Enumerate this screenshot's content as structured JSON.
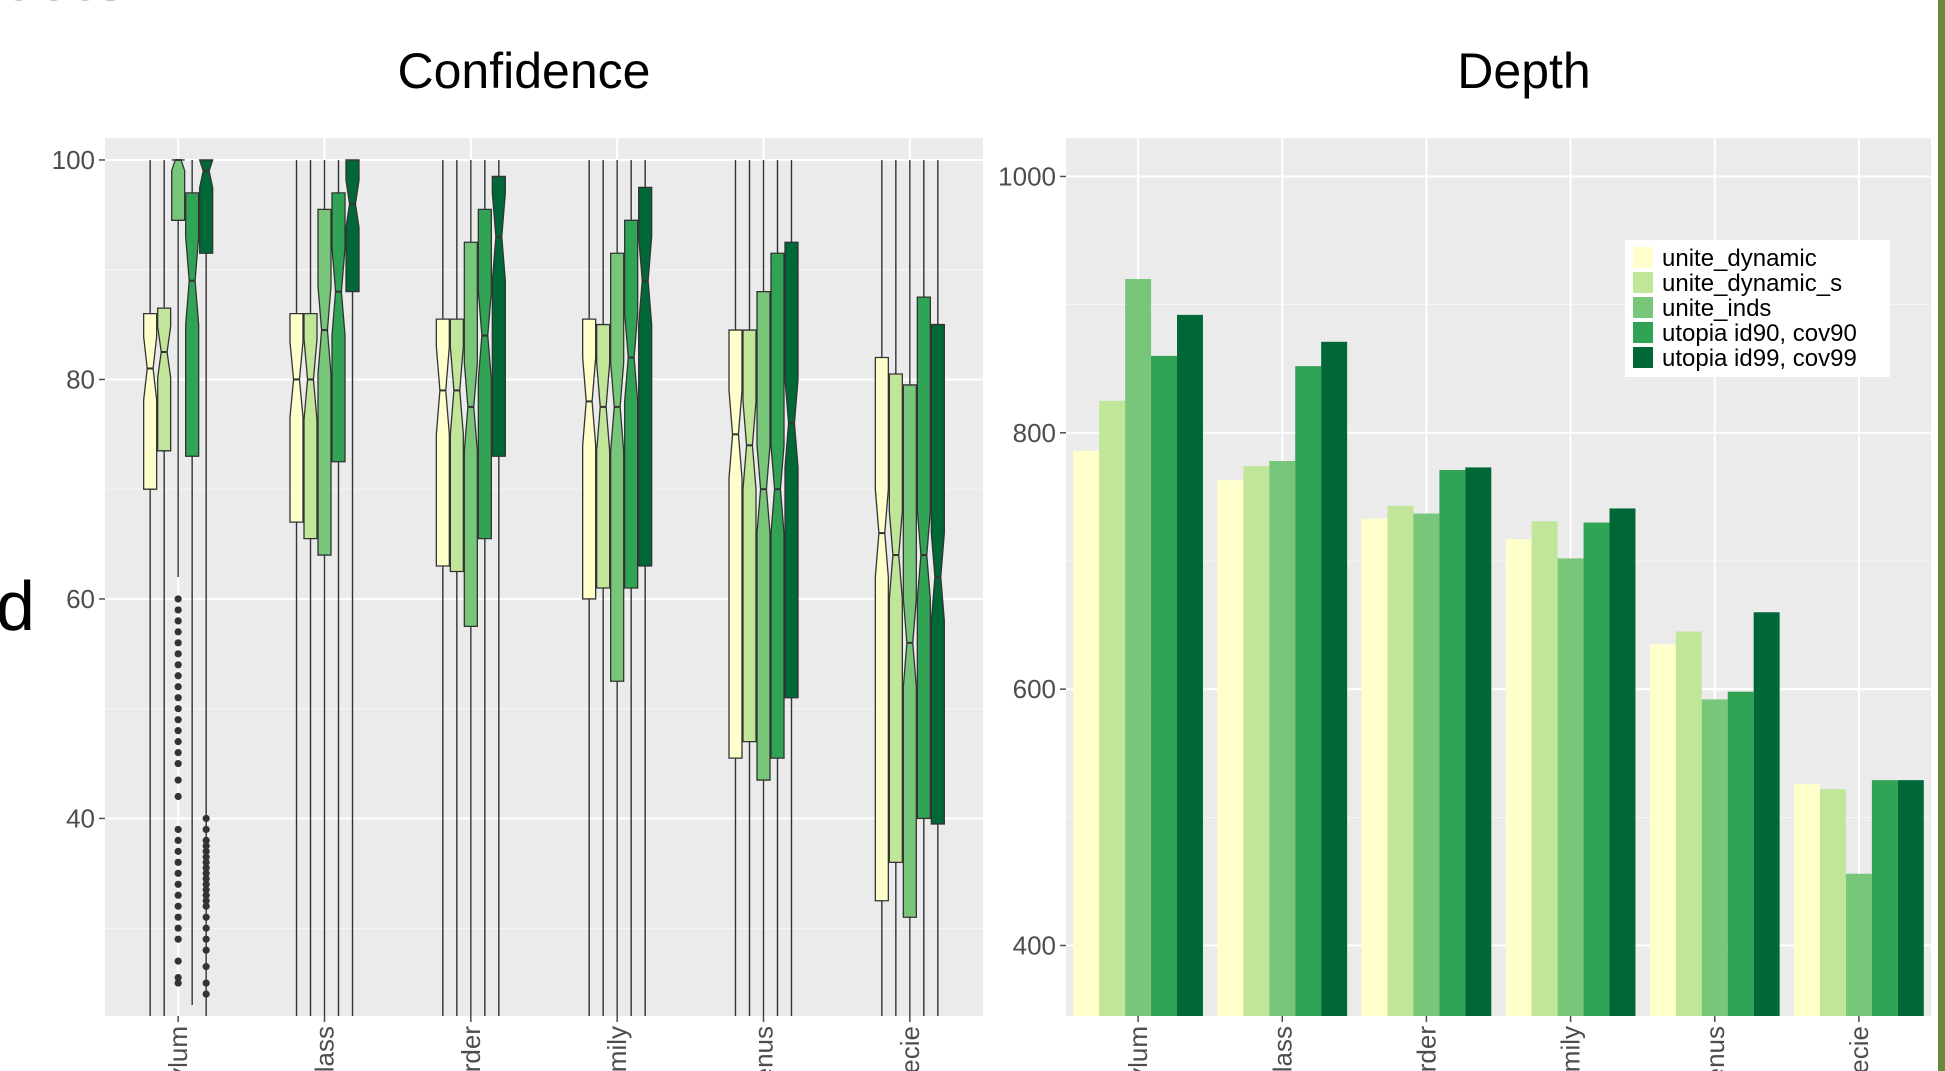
{
  "fragments": {
    "top_left": "cets",
    "left_edge": "d"
  },
  "palette": [
    "#ffffcc",
    "#c2e699",
    "#78c679",
    "#31a354",
    "#006837"
  ],
  "chart_data": [
    {
      "type": "boxplot",
      "title": "Confidence",
      "ylim": [
        22,
        102
      ],
      "yticks": [
        40,
        60,
        80,
        100
      ],
      "grid": true,
      "categories": [
        "ylum",
        "lass",
        "rder",
        "mily",
        "enus",
        "ecie"
      ],
      "series": [
        {
          "boxes": [
            {
              "min": 22,
              "q1": 70,
              "median": 81,
              "q3": 86,
              "max": 100
            },
            {
              "min": 22,
              "q1": 67,
              "median": 80,
              "q3": 86,
              "max": 100
            },
            {
              "min": 22,
              "q1": 63,
              "median": 79,
              "q3": 85.5,
              "max": 100
            },
            {
              "min": 22,
              "q1": 60,
              "median": 78,
              "q3": 85.5,
              "max": 100
            },
            {
              "min": 22,
              "q1": 45.5,
              "median": 75,
              "q3": 84.5,
              "max": 100
            },
            {
              "min": 22,
              "q1": 32.5,
              "median": 66,
              "q3": 82,
              "max": 100
            }
          ]
        },
        {
          "boxes": [
            {
              "min": 22,
              "q1": 73.5,
              "median": 82.5,
              "q3": 86.5,
              "max": 100
            },
            {
              "min": 22,
              "q1": 65.5,
              "median": 80,
              "q3": 86,
              "max": 100
            },
            {
              "min": 22,
              "q1": 62.5,
              "median": 79,
              "q3": 85.5,
              "max": 100
            },
            {
              "min": 22,
              "q1": 61,
              "median": 77.5,
              "q3": 85,
              "max": 100
            },
            {
              "min": 22,
              "q1": 47,
              "median": 74,
              "q3": 84.5,
              "max": 100
            },
            {
              "min": 22,
              "q1": 36,
              "median": 64,
              "q3": 80.5,
              "max": 100
            }
          ]
        },
        {
          "boxes": [
            {
              "min": 62,
              "q1": 94.5,
              "median": 100,
              "q3": 100,
              "max": 100
            },
            {
              "min": 22,
              "q1": 64,
              "median": 84.5,
              "q3": 95.5,
              "max": 100
            },
            {
              "min": 22,
              "q1": 57.5,
              "median": 77.5,
              "q3": 92.5,
              "max": 100
            },
            {
              "min": 22,
              "q1": 52.5,
              "median": 77.5,
              "q3": 91.5,
              "max": 100
            },
            {
              "min": 22,
              "q1": 43.5,
              "median": 70,
              "q3": 88,
              "max": 100
            },
            {
              "min": 22,
              "q1": 31,
              "median": 56,
              "q3": 79.5,
              "max": 100
            }
          ],
          "outliers": [
            25,
            25.5,
            27,
            29,
            30,
            31,
            32,
            33,
            34,
            35,
            36,
            37,
            38,
            39,
            42,
            43.5,
            45,
            46,
            47,
            48,
            49,
            50,
            51,
            52,
            53,
            54,
            55,
            56,
            57,
            58,
            59,
            60
          ]
        },
        {
          "boxes": [
            {
              "min": 23,
              "q1": 73,
              "median": 89,
              "q3": 97,
              "max": 100
            },
            {
              "min": 22,
              "q1": 72.5,
              "median": 88,
              "q3": 97,
              "max": 100
            },
            {
              "min": 22,
              "q1": 65.5,
              "median": 84,
              "q3": 95.5,
              "max": 100
            },
            {
              "min": 22,
              "q1": 61,
              "median": 82,
              "q3": 94.5,
              "max": 100
            },
            {
              "min": 22,
              "q1": 45.5,
              "median": 70,
              "q3": 91.5,
              "max": 100
            },
            {
              "min": 22,
              "q1": 40,
              "median": 64,
              "q3": 87.5,
              "max": 100
            }
          ]
        },
        {
          "boxes": [
            {
              "min": 22,
              "q1": 91.5,
              "median": 99,
              "q3": 100,
              "max": 100
            },
            {
              "min": 22,
              "q1": 88,
              "median": 96,
              "q3": 100,
              "max": 100
            },
            {
              "min": 22,
              "q1": 73,
              "median": 93,
              "q3": 98.5,
              "max": 100
            },
            {
              "min": 22,
              "q1": 63,
              "median": 89,
              "q3": 97.5,
              "max": 100
            },
            {
              "min": 22,
              "q1": 51,
              "median": 76,
              "q3": 92.5,
              "max": 100
            },
            {
              "min": 22,
              "q1": 39.5,
              "median": 62,
              "q3": 85,
              "max": 100
            }
          ],
          "outliers": [
            24,
            25,
            26.5,
            28,
            29,
            30,
            31,
            32,
            32.5,
            33,
            33.5,
            34,
            34.5,
            35,
            35.5,
            36,
            36.5,
            37,
            37.5,
            38,
            39,
            40
          ]
        }
      ]
    },
    {
      "type": "bar",
      "title": "Depth",
      "ylim": [
        345,
        1030
      ],
      "yticks": [
        400,
        600,
        800,
        1000
      ],
      "grid": true,
      "legend_position": "top-right",
      "categories": [
        "ylum",
        "lass",
        "rder",
        "mily",
        "enus",
        "ecie"
      ],
      "series": [
        {
          "name": "unite_dynamic",
          "values": [
            786,
            763,
            733,
            717,
            635,
            526
          ]
        },
        {
          "name": "unite_dynamic_s",
          "values": [
            825,
            774,
            743,
            731,
            645,
            522
          ]
        },
        {
          "name": "unite_inds",
          "values": [
            920,
            778,
            737,
            702,
            592,
            456
          ]
        },
        {
          "name": "utopia id90, cov90",
          "values": [
            860,
            852,
            771,
            730,
            598,
            529
          ]
        },
        {
          "name": "utopia id99, cov99",
          "values": [
            892,
            871,
            773,
            741,
            660,
            529
          ]
        }
      ]
    }
  ]
}
